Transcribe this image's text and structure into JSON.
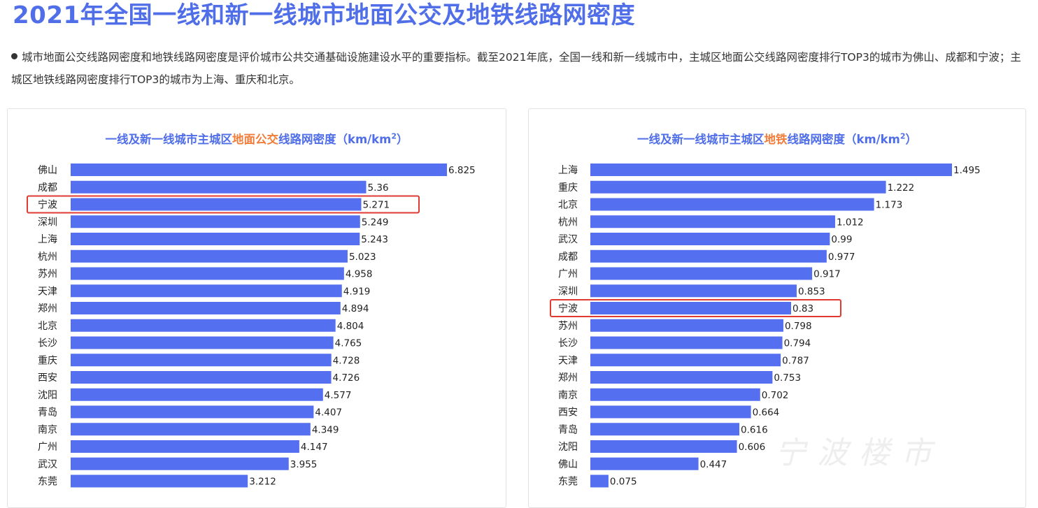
{
  "page": {
    "title": "2021年全国一线和新一线城市地面公交及地铁线路网密度",
    "summary": "城市地面公交线路网密度和地铁线路网密度是评价城市公共交通基础设施建设水平的重要指标。截至2021年底，全国一线和新一线城市中，主城区地面公交线路网密度排行TOP3的城市为佛山、成都和宁波；主城区地铁线路网密度排行TOP3的城市为上海、重庆和北京。",
    "watermark": "宁波楼市"
  },
  "colors": {
    "bar": "#5470f0",
    "title": "#4f6ee8",
    "accent": "#f07d3a",
    "highlight_box": "#e03a31"
  },
  "chart_data": [
    {
      "type": "bar",
      "orientation": "horizontal",
      "title_prefix": "一线及新一线城市主城区",
      "title_highlight": "地面公交",
      "title_suffix": "线路网密度（km/km",
      "title_sup": "2",
      "title_end": "）",
      "highlighted_category": "宁波",
      "categories": [
        "佛山",
        "成都",
        "宁波",
        "深圳",
        "上海",
        "杭州",
        "苏州",
        "天津",
        "郑州",
        "北京",
        "长沙",
        "重庆",
        "西安",
        "沈阳",
        "青岛",
        "南京",
        "广州",
        "武汉",
        "东莞"
      ],
      "values": [
        6.825,
        5.36,
        5.271,
        5.249,
        5.243,
        5.023,
        4.958,
        4.919,
        4.894,
        4.804,
        4.765,
        4.728,
        4.726,
        4.577,
        4.407,
        4.349,
        4.147,
        3.955,
        3.212
      ],
      "labels": [
        "6.825",
        "5.36",
        "5.271",
        "5.249",
        "5.243",
        "5.023",
        "4.958",
        "4.919",
        "4.894",
        "4.804",
        "4.765",
        "4.728",
        "4.726",
        "4.577",
        "4.407",
        "4.349",
        "4.147",
        "3.955",
        "3.212"
      ],
      "xlim": [
        0,
        6.825
      ]
    },
    {
      "type": "bar",
      "orientation": "horizontal",
      "title_prefix": "一线及新一线城市主城区",
      "title_highlight": "地铁",
      "title_suffix": "线路网密度（km/km",
      "title_sup": "2",
      "title_end": "）",
      "highlighted_category": "宁波",
      "categories": [
        "上海",
        "重庆",
        "北京",
        "杭州",
        "武汉",
        "成都",
        "广州",
        "深圳",
        "宁波",
        "苏州",
        "长沙",
        "天津",
        "郑州",
        "南京",
        "西安",
        "青岛",
        "沈阳",
        "佛山",
        "东莞"
      ],
      "values": [
        1.495,
        1.222,
        1.173,
        1.012,
        0.99,
        0.977,
        0.917,
        0.853,
        0.83,
        0.798,
        0.794,
        0.787,
        0.753,
        0.702,
        0.664,
        0.616,
        0.606,
        0.447,
        0.075
      ],
      "labels": [
        "1.495",
        "1.222",
        "1.173",
        "1.012",
        "0.99",
        "0.977",
        "0.917",
        "0.853",
        "0.83",
        "0.798",
        "0.794",
        "0.787",
        "0.753",
        "0.702",
        "0.664",
        "0.616",
        "0.606",
        "0.447",
        "0.075"
      ],
      "xlim": [
        0,
        1.495
      ]
    }
  ]
}
